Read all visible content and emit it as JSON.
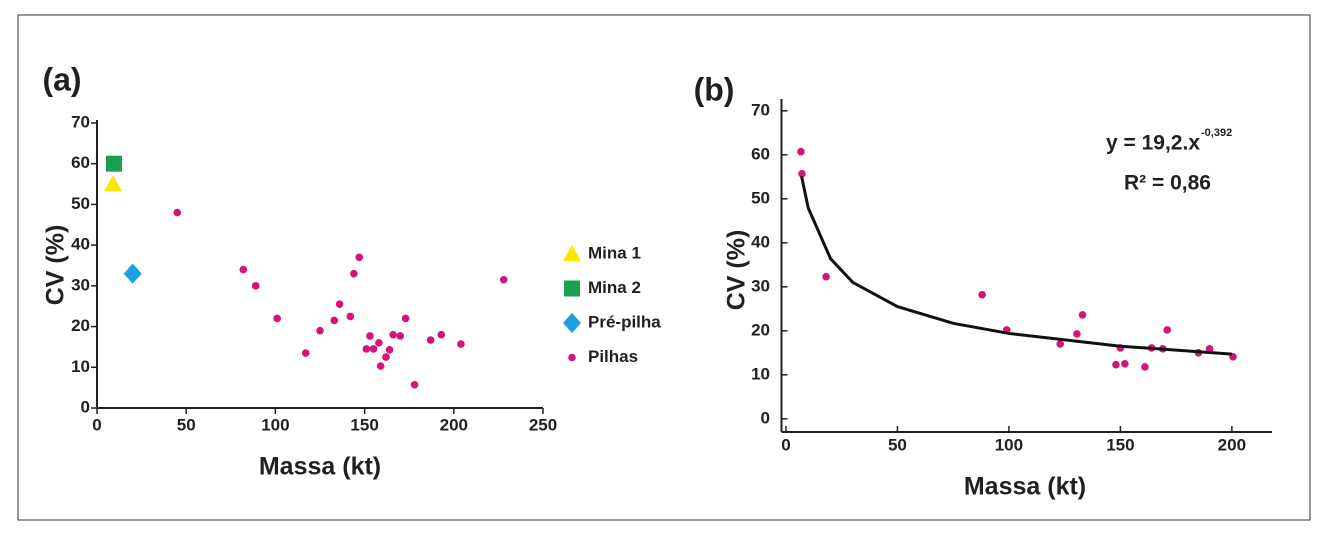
{
  "chart_data": [
    {
      "type": "scatter",
      "panel_label": "(a)",
      "xlabel": "Massa (kt)",
      "ylabel": "CV (%)",
      "xlim": [
        0,
        250
      ],
      "xticks": [
        0,
        50,
        100,
        150,
        200,
        250
      ],
      "ylim": [
        0,
        70
      ],
      "yticks": [
        0,
        10,
        20,
        30,
        40,
        50,
        60,
        70
      ],
      "legend": "right",
      "series": [
        {
          "name": "Mina 1",
          "color": "#ffe600",
          "marker": "triangle",
          "x": [
            9
          ],
          "values": [
            55
          ]
        },
        {
          "name": "Mina 2",
          "color": "#1aa050",
          "marker": "square",
          "x": [
            9.5
          ],
          "values": [
            60
          ]
        },
        {
          "name": "Pré-pilha",
          "color": "#1aa0e0",
          "marker": "diamond",
          "x": [
            20
          ],
          "values": [
            33
          ]
        },
        {
          "name": "Pilhas",
          "color": "#d4147a",
          "marker": "circle",
          "x": [
            45,
            82,
            89,
            101,
            117,
            125,
            133,
            136,
            142,
            144,
            147,
            151,
            153,
            155,
            158,
            159,
            162,
            164,
            166,
            170,
            173,
            178,
            187,
            193,
            204,
            228
          ],
          "values": [
            48,
            34,
            30,
            22,
            13.5,
            19,
            21.5,
            25.5,
            22.5,
            33,
            37,
            14.5,
            17.7,
            14.5,
            16,
            10.3,
            12.5,
            14.3,
            18,
            17.7,
            22,
            5.7,
            16.7,
            18,
            15.7,
            31.5
          ]
        }
      ]
    },
    {
      "type": "scatter",
      "panel_label": "(b)",
      "xlabel": "Massa (kt)",
      "ylabel": "CV (%)",
      "xlim": [
        -2,
        218
      ],
      "xticks": [
        0,
        50,
        100,
        150,
        200
      ],
      "ylim": [
        -3,
        72
      ],
      "yticks": [
        0,
        10,
        20,
        30,
        40,
        50,
        60,
        70
      ],
      "equation": {
        "base": "y = 19,2.x",
        "exponent": "-0,392"
      },
      "r2": "R² = 0,86",
      "series": [
        {
          "color": "#d4147a",
          "marker": "circle",
          "x": [
            6.7,
            7.2,
            18,
            88,
            99,
            123,
            130.5,
            133,
            148,
            150,
            152,
            161,
            164,
            169,
            171,
            185,
            190,
            200.5
          ],
          "values": [
            60.7,
            55.7,
            32.3,
            28.2,
            20.2,
            17,
            19.3,
            23.6,
            12.3,
            16.1,
            12.5,
            11.8,
            16.1,
            15.9,
            20.2,
            15,
            15.9,
            14.1
          ]
        },
        {
          "color": "#111111",
          "marker": "line",
          "x": [
            7,
            10,
            20,
            30,
            50,
            75,
            100,
            150,
            200
          ],
          "values": [
            55.1,
            47.9,
            36.4,
            31,
            25.5,
            21.7,
            19.4,
            16.5,
            14.7
          ]
        }
      ]
    }
  ]
}
